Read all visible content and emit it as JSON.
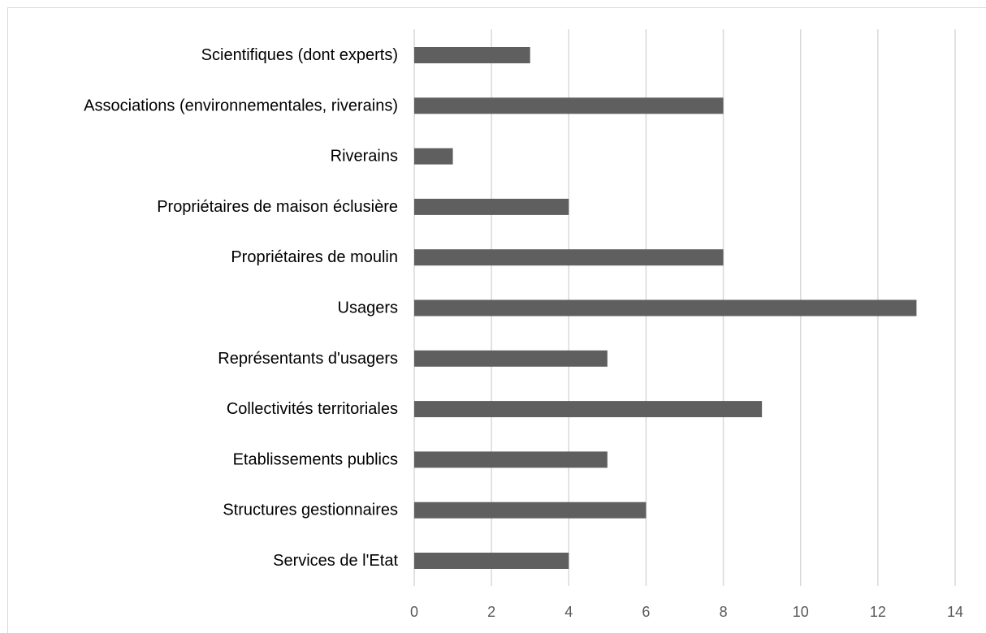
{
  "chart_data": {
    "type": "bar",
    "orientation": "horizontal",
    "categories": [
      "Scientifiques (dont experts)",
      "Associations (environnementales, riverains)",
      "Riverains",
      "Propriétaires de maison éclusière",
      "Propriétaires de moulin",
      "Usagers",
      "Représentants d'usagers",
      "Collectivités territoriales",
      "Etablissements publics",
      "Structures gestionnaires",
      "Services de l'Etat"
    ],
    "values": [
      3,
      8,
      1,
      4,
      8,
      13,
      5,
      9,
      5,
      6,
      4
    ],
    "xlim": [
      0,
      14
    ],
    "xticks": [
      "0",
      "2",
      "4",
      "6",
      "8",
      "10",
      "12",
      "14"
    ],
    "grid": "vertical",
    "legend": "none",
    "bar_color": "#5f5f5f",
    "grid_color": "#d9d9d9",
    "title": "",
    "xlabel": "",
    "ylabel": ""
  }
}
